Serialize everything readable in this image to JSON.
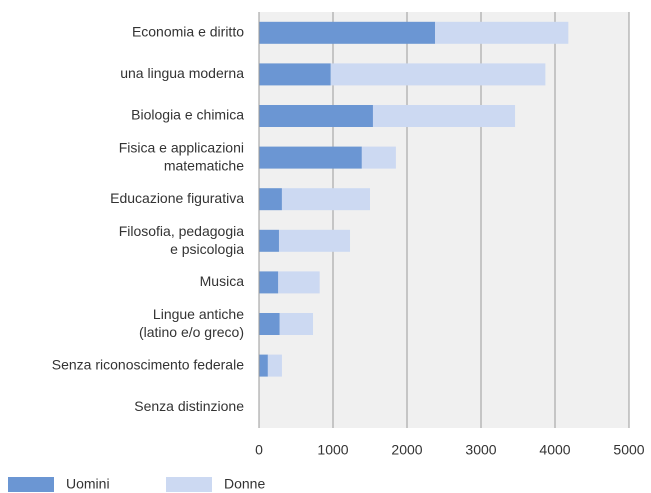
{
  "chart_data": {
    "type": "stacked-bar-horizontal",
    "categories": [
      "Economia e diritto",
      "una lingua moderna",
      "Biologia e chimica",
      "Fisica e applicazioni\nmatematiche",
      "Educazione figurativa",
      "Filosofia, pedagogia\ne psicologia",
      "Musica",
      "Lingue antiche\n(latino e/o greco)",
      "Senza riconoscimento federale",
      "Senza distinzione"
    ],
    "series": [
      {
        "name": "Uomini",
        "color": "#6b96d3",
        "values": [
          2380,
          970,
          1540,
          1390,
          310,
          270,
          260,
          280,
          120,
          0
        ]
      },
      {
        "name": "Donne",
        "color": "#ccd9f2",
        "values": [
          1800,
          2900,
          1920,
          460,
          1190,
          960,
          560,
          450,
          190,
          0
        ]
      }
    ],
    "xlim": [
      0,
      5000
    ],
    "xticks": [
      0,
      1000,
      2000,
      3000,
      4000,
      5000
    ],
    "grid": true,
    "legend": "bottom-left"
  }
}
